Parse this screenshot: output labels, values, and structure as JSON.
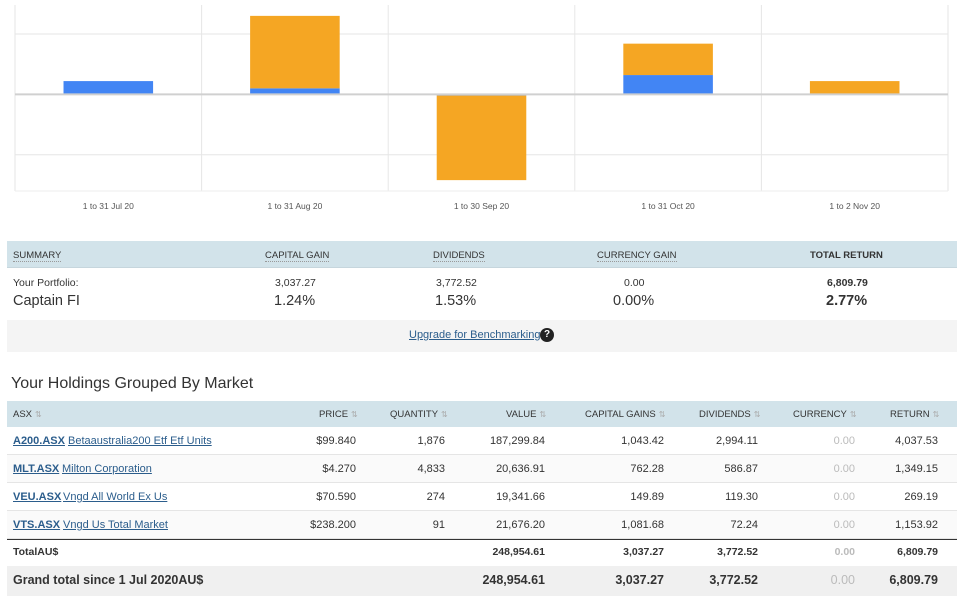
{
  "chart_data": {
    "type": "bar",
    "stacked": true,
    "categories": [
      "1 to 31 Jul 20",
      "1 to 31 Aug 20",
      "1 to 30 Sep 20",
      "1 to 31 Oct 20",
      "1 to 2 Nov 20"
    ],
    "series": [
      {
        "color": "#4285f4",
        "values": [
          0.55,
          0.25,
          -0.05,
          0.8,
          0
        ]
      },
      {
        "color": "#f5a623",
        "values": [
          0,
          3.0,
          -3.5,
          1.3,
          0.55
        ]
      }
    ],
    "ylim": [
      -4,
      3.7
    ],
    "grid": true
  },
  "summary": {
    "headers": {
      "summary": "SUMMARY",
      "capital_gain": "CAPITAL GAIN",
      "dividends": "DIVIDENDS",
      "currency_gain": "CURRENCY GAIN",
      "total_return": "TOTAL RETURN"
    },
    "portfolio_label": "Your Portfolio:",
    "portfolio_name": "Captain FI",
    "capital_gain": {
      "value": "3,037.27",
      "pct": "1.24%"
    },
    "dividends": {
      "value": "3,772.52",
      "pct": "1.53%"
    },
    "currency_gain": {
      "value": "0.00",
      "pct": "0.00%"
    },
    "total_return": {
      "value": "6,809.79",
      "pct": "2.77%"
    },
    "upgrade_link": "Upgrade for Benchmarking",
    "help_icon": "?"
  },
  "holdings": {
    "title": "Your Holdings Grouped By Market",
    "headers": {
      "market": "ASX",
      "price": "PRICE",
      "quantity": "QUANTITY",
      "value": "VALUE",
      "capital_gains": "CAPITAL GAINS",
      "dividends": "DIVIDENDS",
      "currency": "CURRENCY",
      "return": "RETURN",
      "sort_glyph": "⇅"
    },
    "rows": [
      {
        "ticker": "A200.ASX",
        "name": "Betaaustralia200 Etf Etf Units",
        "price": "$99.840",
        "quantity": "1,876",
        "value": "187,299.84",
        "capital_gains": "1,043.42",
        "dividends": "2,994.11",
        "currency": "0.00",
        "return": "4,037.53"
      },
      {
        "ticker": "MLT.ASX",
        "name": "Milton Corporation",
        "price": "$4.270",
        "quantity": "4,833",
        "value": "20,636.91",
        "capital_gains": "762.28",
        "dividends": "586.87",
        "currency": "0.00",
        "return": "1,349.15"
      },
      {
        "ticker": "VEU.ASX",
        "name": "Vngd All World Ex Us",
        "price": "$70.590",
        "quantity": "274",
        "value": "19,341.66",
        "capital_gains": "149.89",
        "dividends": "119.30",
        "currency": "0.00",
        "return": "269.19"
      },
      {
        "ticker": "VTS.ASX",
        "name": "Vngd Us Total Market",
        "price": "$238.200",
        "quantity": "91",
        "value": "21,676.20",
        "capital_gains": "1,081.68",
        "dividends": "72.24",
        "currency": "0.00",
        "return": "1,153.92"
      }
    ],
    "total": {
      "label": "TotalAU$",
      "value": "248,954.61",
      "capital_gains": "3,037.27",
      "dividends": "3,772.52",
      "currency": "0.00",
      "return": "6,809.79"
    },
    "grand_total": {
      "label": "Grand total since 1 Jul 2020AU$",
      "value": "248,954.61",
      "capital_gains": "3,037.27",
      "dividends": "3,772.52",
      "currency": "0.00",
      "return": "6,809.79"
    }
  }
}
